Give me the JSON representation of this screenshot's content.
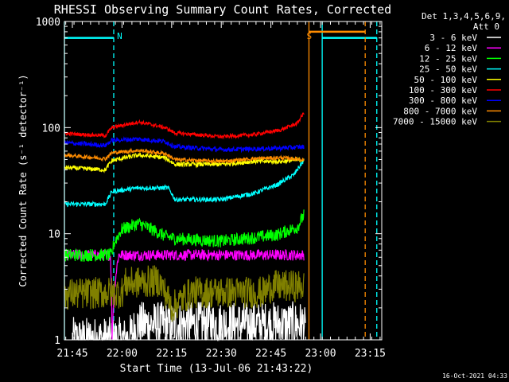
{
  "chart_data": {
    "type": "line",
    "title": "RHESSI Observing Summary Count Rates, Corrected",
    "xlabel": "Start Time (13-Jul-06 21:43:22)",
    "ylabel": "Corrected Count Rate (s⁻¹ detector⁻¹)",
    "y_scale": "log",
    "ylim": [
      1,
      1000
    ],
    "xlim_minutes": [
      -2.4,
      93.5
    ],
    "x_ticks": [
      {
        "label": "21:45",
        "minutes": 0
      },
      {
        "label": "22:00",
        "minutes": 15
      },
      {
        "label": "22:15",
        "minutes": 30
      },
      {
        "label": "22:30",
        "minutes": 45
      },
      {
        "label": "22:45",
        "minutes": 60
      },
      {
        "label": "23:00",
        "minutes": 75
      },
      {
        "label": "23:15",
        "minutes": 90
      }
    ],
    "y_ticks": [
      {
        "label": "1",
        "value": 1
      },
      {
        "label": "10",
        "value": 10
      },
      {
        "label": "100",
        "value": 100
      },
      {
        "label": "1000",
        "value": 1000
      }
    ],
    "legend_header": [
      "Det 1,3,4,5,6,9,",
      "Att 0"
    ],
    "legend_position": "right",
    "footer": "16-Oct-2021 04:33",
    "grid": false,
    "flags": [
      {
        "label": "N",
        "color": "#00ffff",
        "lines": [
          -2.4,
          12.5,
          75.5,
          92.0
        ],
        "level": 700,
        "segments": [
          [
            -2.4,
            12.5
          ],
          [
            75.5,
            92.0
          ]
        ]
      },
      {
        "label": "S",
        "color": "#ff8c00",
        "lines": [
          71.5,
          88.5
        ],
        "level": 800,
        "segments": [
          [
            71.5,
            88.5
          ]
        ]
      }
    ],
    "series": [
      {
        "name": "3 - 6 keV",
        "color": "#ffffff",
        "key": [
          [
            0,
            1
          ],
          [
            17,
            1
          ],
          [
            20,
            1.4
          ],
          [
            70,
            1.4
          ],
          [
            70.5,
            1
          ]
        ]
      },
      {
        "name": "6 - 12 keV",
        "color": "#ff00ff",
        "key": [
          [
            -2.4,
            6.3
          ],
          [
            10,
            6.3
          ],
          [
            11.5,
            6.3
          ],
          [
            12,
            1
          ],
          [
            14,
            6.3
          ],
          [
            70,
            6.3
          ]
        ]
      },
      {
        "name": "12 - 25 keV",
        "color": "#00ff00",
        "key": [
          [
            -2.4,
            6.3
          ],
          [
            12,
            6.3
          ],
          [
            12.5,
            8
          ],
          [
            15,
            11
          ],
          [
            20,
            12.5
          ],
          [
            28,
            9.5
          ],
          [
            31,
            9
          ],
          [
            45,
            8.5
          ],
          [
            55,
            9.2
          ],
          [
            62,
            9.8
          ],
          [
            68,
            11.5
          ],
          [
            70,
            15
          ]
        ]
      },
      {
        "name": "25 - 50 keV",
        "color": "#00ffff",
        "key": [
          [
            -2.4,
            19
          ],
          [
            10,
            19
          ],
          [
            12,
            25
          ],
          [
            20,
            27
          ],
          [
            29,
            27
          ],
          [
            31,
            21
          ],
          [
            45,
            21
          ],
          [
            55,
            24
          ],
          [
            62,
            29
          ],
          [
            67,
            36
          ],
          [
            70,
            49
          ]
        ]
      },
      {
        "name": "50 - 100 keV",
        "color": "#ffff00",
        "key": [
          [
            -2.4,
            42
          ],
          [
            10,
            40
          ],
          [
            12,
            49
          ],
          [
            20,
            55
          ],
          [
            28,
            52
          ],
          [
            31,
            45
          ],
          [
            45,
            45
          ],
          [
            55,
            48
          ],
          [
            63,
            48
          ],
          [
            70,
            50
          ]
        ]
      },
      {
        "name": "100 - 300 keV",
        "color": "#ff0000",
        "key": [
          [
            -2.4,
            88
          ],
          [
            10,
            84
          ],
          [
            12,
            100
          ],
          [
            20,
            113
          ],
          [
            28,
            100
          ],
          [
            31,
            89
          ],
          [
            45,
            82
          ],
          [
            55,
            86
          ],
          [
            63,
            95
          ],
          [
            68,
            110
          ],
          [
            70,
            138
          ]
        ]
      },
      {
        "name": "300 - 800 keV",
        "color": "#0000ff",
        "key": [
          [
            -2.4,
            72
          ],
          [
            10,
            68
          ],
          [
            12,
            76
          ],
          [
            20,
            78
          ],
          [
            28,
            74
          ],
          [
            31,
            66
          ],
          [
            45,
            62
          ],
          [
            55,
            63
          ],
          [
            63,
            64
          ],
          [
            70,
            66
          ]
        ]
      },
      {
        "name": "800 - 7000 keV",
        "color": "#ff8c00",
        "key": [
          [
            -2.4,
            55
          ],
          [
            10,
            51
          ],
          [
            12,
            58
          ],
          [
            20,
            61
          ],
          [
            28,
            57
          ],
          [
            31,
            50
          ],
          [
            45,
            48
          ],
          [
            55,
            51
          ],
          [
            63,
            52
          ],
          [
            70,
            50
          ]
        ]
      },
      {
        "name": "7000 - 15000 keV",
        "color": "#808000",
        "key": [
          [
            -2.4,
            2.7
          ],
          [
            15,
            2.8
          ],
          [
            16,
            3.4
          ],
          [
            26,
            3.6
          ],
          [
            30,
            2
          ],
          [
            36,
            2.8
          ],
          [
            45,
            2.8
          ],
          [
            58,
            2.8
          ],
          [
            60,
            3.2
          ],
          [
            70,
            3.2
          ]
        ]
      }
    ]
  }
}
